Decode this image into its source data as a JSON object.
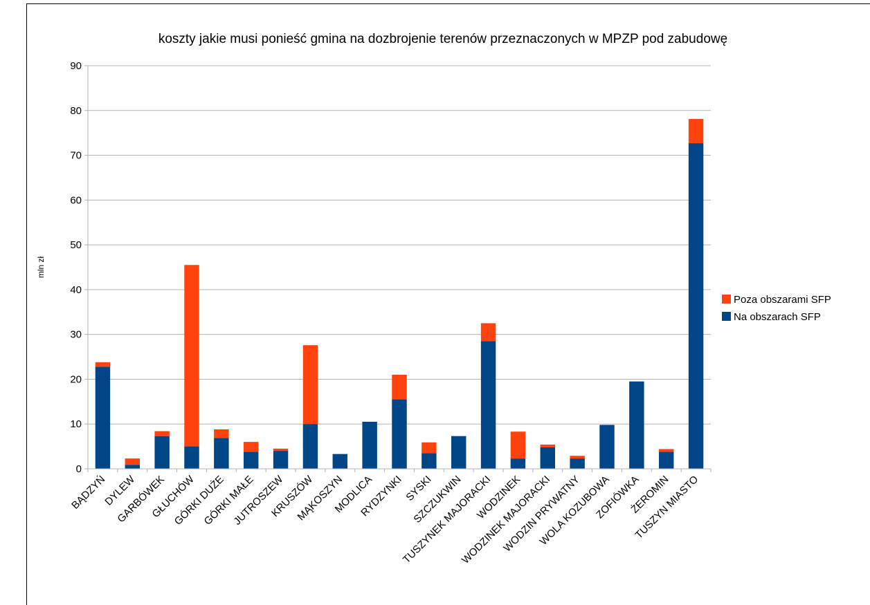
{
  "chart_data": {
    "type": "bar",
    "stacked": true,
    "title": "koszty jakie musi ponieść gmina na dozbrojenie terenów przeznaczonych w MPZP pod zabudowę",
    "xlabel": "",
    "ylabel": "mln zł",
    "ylim": [
      0,
      90
    ],
    "yticks": [
      0,
      10,
      20,
      30,
      40,
      50,
      60,
      70,
      80,
      90
    ],
    "grid": "horizontal",
    "legend_position": "right",
    "categories": [
      "BĄDZYŃ",
      "DYLEW",
      "GARBÓWEK",
      "GŁUCHÓW",
      "GÓRKI DUŻE",
      "GÓRKI MAŁE",
      "JUTROSZEW",
      "KRUSZÓW",
      "MĄKOSZYN",
      "MODLICA",
      "RYDZYNKI",
      "SYSKI",
      "SZCZUKWIN",
      "TUSZYNEK MAJORACKI",
      "WODZINEK",
      "WODZINEK MAJORACKI",
      "WODZIN PRYWATNY",
      "WOLA KOZUBOWA",
      "ZOFIÓWKA",
      "ŻEROMIN",
      "TUSZYN MIASTO"
    ],
    "series": [
      {
        "name": "Na obszarach SFP",
        "color": "#004586",
        "values": [
          22.8,
          0.9,
          7.3,
          5.0,
          6.9,
          3.8,
          4.0,
          10.0,
          3.3,
          10.5,
          15.5,
          3.5,
          7.3,
          28.5,
          2.3,
          4.8,
          2.3,
          9.8,
          19.5,
          3.8,
          72.7
        ]
      },
      {
        "name": "Poza obszarami SFP",
        "color": "#ff420e",
        "values": [
          1.0,
          1.4,
          1.1,
          40.5,
          1.9,
          2.2,
          0.5,
          17.6,
          0.0,
          0.0,
          5.5,
          2.4,
          0.0,
          4.0,
          6.0,
          0.6,
          0.6,
          0.0,
          0.0,
          0.6,
          5.4
        ]
      }
    ],
    "legend_order": [
      "Poza obszarami SFP",
      "Na obszarach SFP"
    ]
  }
}
